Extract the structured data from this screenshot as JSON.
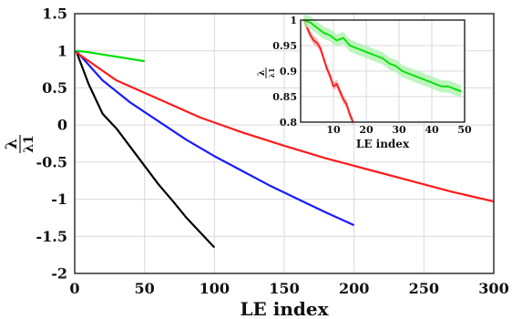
{
  "chart_data": [
    {
      "type": "line",
      "xlabel": "LE index",
      "ylabel": "λ",
      "ylabel_sub": "λ1",
      "xlim": [
        0,
        300
      ],
      "ylim": [
        -2,
        1.5
      ],
      "xticks": [
        0,
        50,
        100,
        150,
        200,
        250,
        300
      ],
      "yticks": [
        -2,
        -1.5,
        -1,
        -0.5,
        0,
        0.5,
        1,
        1.5
      ],
      "xtick_labels": [
        "0",
        "50",
        "100",
        "150",
        "200",
        "250",
        "300"
      ],
      "ytick_labels": [
        "-2",
        "-1.5",
        "-1",
        "-0.5",
        "0",
        "0.5",
        "1",
        "1.5"
      ],
      "grid": true,
      "series": [
        {
          "color": "#000000",
          "x": [
            1,
            10,
            20,
            30,
            40,
            50,
            60,
            70,
            80,
            90,
            100
          ],
          "y": [
            1.0,
            0.55,
            0.15,
            -0.05,
            -0.3,
            -0.55,
            -0.8,
            -1.02,
            -1.25,
            -1.45,
            -1.65
          ]
        },
        {
          "color": "#1a1aff",
          "x": [
            1,
            20,
            40,
            60,
            80,
            100,
            120,
            140,
            160,
            180,
            200
          ],
          "y": [
            1.0,
            0.6,
            0.3,
            0.05,
            -0.2,
            -0.42,
            -0.62,
            -0.82,
            -1.0,
            -1.18,
            -1.35
          ]
        },
        {
          "color": "#ff1a1a",
          "x": [
            1,
            30,
            60,
            90,
            120,
            150,
            180,
            210,
            240,
            270,
            300
          ],
          "y": [
            0.98,
            0.6,
            0.35,
            0.1,
            -0.1,
            -0.28,
            -0.45,
            -0.6,
            -0.75,
            -0.9,
            -1.03
          ]
        },
        {
          "color": "#00e000",
          "x": [
            1,
            10,
            20,
            30,
            40,
            50
          ],
          "y": [
            1.0,
            0.98,
            0.95,
            0.92,
            0.89,
            0.86
          ]
        }
      ]
    },
    {
      "type": "line",
      "xlabel": "LE index",
      "ylabel": "λ",
      "ylabel_sub": "λ1",
      "xlim": [
        0,
        50
      ],
      "ylim": [
        0.8,
        1.0
      ],
      "xticks": [
        10,
        20,
        30,
        40,
        50
      ],
      "yticks": [
        0.8,
        0.85,
        0.9,
        0.95,
        1.0
      ],
      "xtick_labels": [
        "10",
        "20",
        "30",
        "40",
        "50"
      ],
      "ytick_labels": [
        "0.8",
        "0.85",
        "0.9",
        "0.95",
        "1"
      ],
      "grid": true,
      "series": [
        {
          "color": "#ff1a1a",
          "band_color": "#f4a6a6",
          "x": [
            1,
            2,
            3,
            4,
            5,
            6,
            7,
            8,
            9,
            10,
            11,
            12,
            13,
            14,
            15,
            16
          ],
          "y": [
            1.0,
            0.985,
            0.97,
            0.96,
            0.955,
            0.945,
            0.925,
            0.905,
            0.89,
            0.87,
            0.875,
            0.86,
            0.845,
            0.835,
            0.815,
            0.8
          ],
          "band": 0.008
        },
        {
          "color": "#00e000",
          "band_color": "#aef2ae",
          "x": [
            1,
            3,
            5,
            7,
            9,
            11,
            13,
            15,
            17,
            19,
            21,
            23,
            25,
            27,
            29,
            31,
            33,
            35,
            37,
            39,
            41,
            43,
            45,
            47,
            49
          ],
          "y": [
            1.0,
            0.995,
            0.985,
            0.975,
            0.97,
            0.96,
            0.965,
            0.95,
            0.945,
            0.94,
            0.935,
            0.93,
            0.925,
            0.915,
            0.91,
            0.9,
            0.895,
            0.89,
            0.885,
            0.88,
            0.875,
            0.87,
            0.87,
            0.865,
            0.86
          ],
          "band": 0.012
        }
      ]
    }
  ]
}
